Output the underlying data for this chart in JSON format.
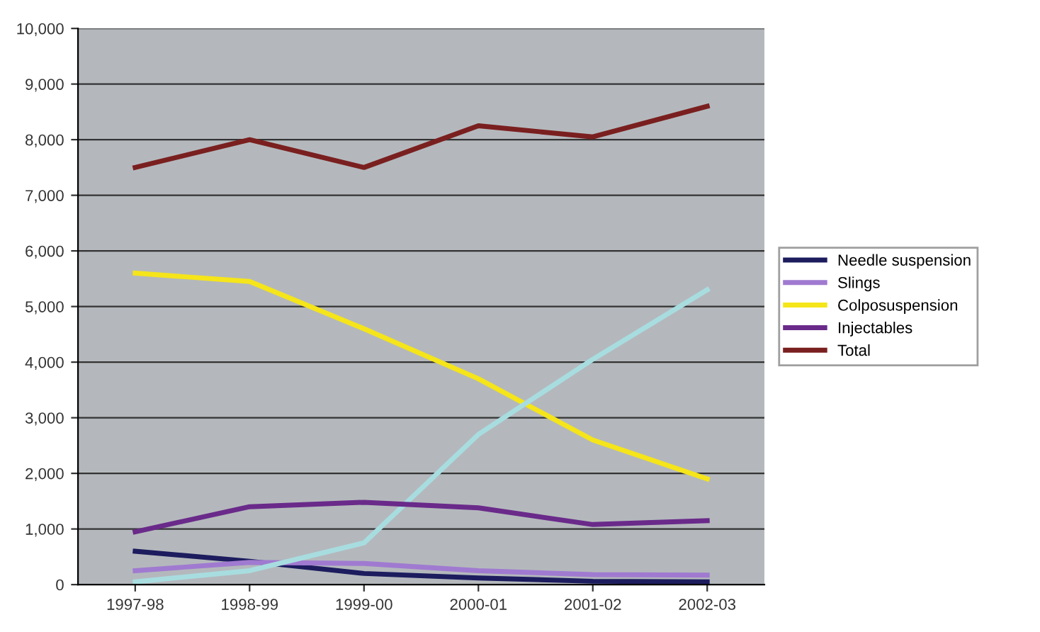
{
  "chart_data": {
    "type": "line",
    "categories": [
      "1997-98",
      "1998-99",
      "1999-00",
      "2000-01",
      "2001-02",
      "2002-03"
    ],
    "series": [
      {
        "name": "Needle suspension",
        "color": "#1c1c5e",
        "values": [
          600,
          420,
          200,
          120,
          60,
          50
        ]
      },
      {
        "name": "Slings",
        "color": "#a07ad0",
        "values": [
          250,
          400,
          380,
          250,
          180,
          170
        ]
      },
      {
        "name": "Colposuspension",
        "color": "#f5e51a",
        "values": [
          5600,
          5450,
          4600,
          3700,
          2600,
          1900
        ]
      },
      {
        "color": "#a8dde0",
        "values": [
          50,
          250,
          750,
          2700,
          4050,
          5300
        ]
      },
      {
        "name": "Injectables",
        "color": "#6a2a8a",
        "values": [
          950,
          1400,
          1480,
          1380,
          1080,
          1150
        ]
      },
      {
        "name": "Total",
        "color": "#7a1f1f",
        "values": [
          7500,
          8000,
          7500,
          8250,
          8050,
          8600
        ]
      }
    ],
    "ylim": [
      0,
      10000
    ],
    "yticks": [
      {
        "value": 0,
        "label": "0"
      },
      {
        "value": 1000,
        "label": "1,000"
      },
      {
        "value": 2000,
        "label": "2,000"
      },
      {
        "value": 3000,
        "label": "3,000"
      },
      {
        "value": 4000,
        "label": "4,000"
      },
      {
        "value": 5000,
        "label": "5,000"
      },
      {
        "value": 6000,
        "label": "6,000"
      },
      {
        "value": 7000,
        "label": "7,000"
      },
      {
        "value": 8000,
        "label": "8,000"
      },
      {
        "value": 9000,
        "label": "9,000"
      },
      {
        "value": 10000,
        "label": "10,000"
      }
    ],
    "grid": "y",
    "legend": "right",
    "marker": "none",
    "line_style": "solid"
  }
}
